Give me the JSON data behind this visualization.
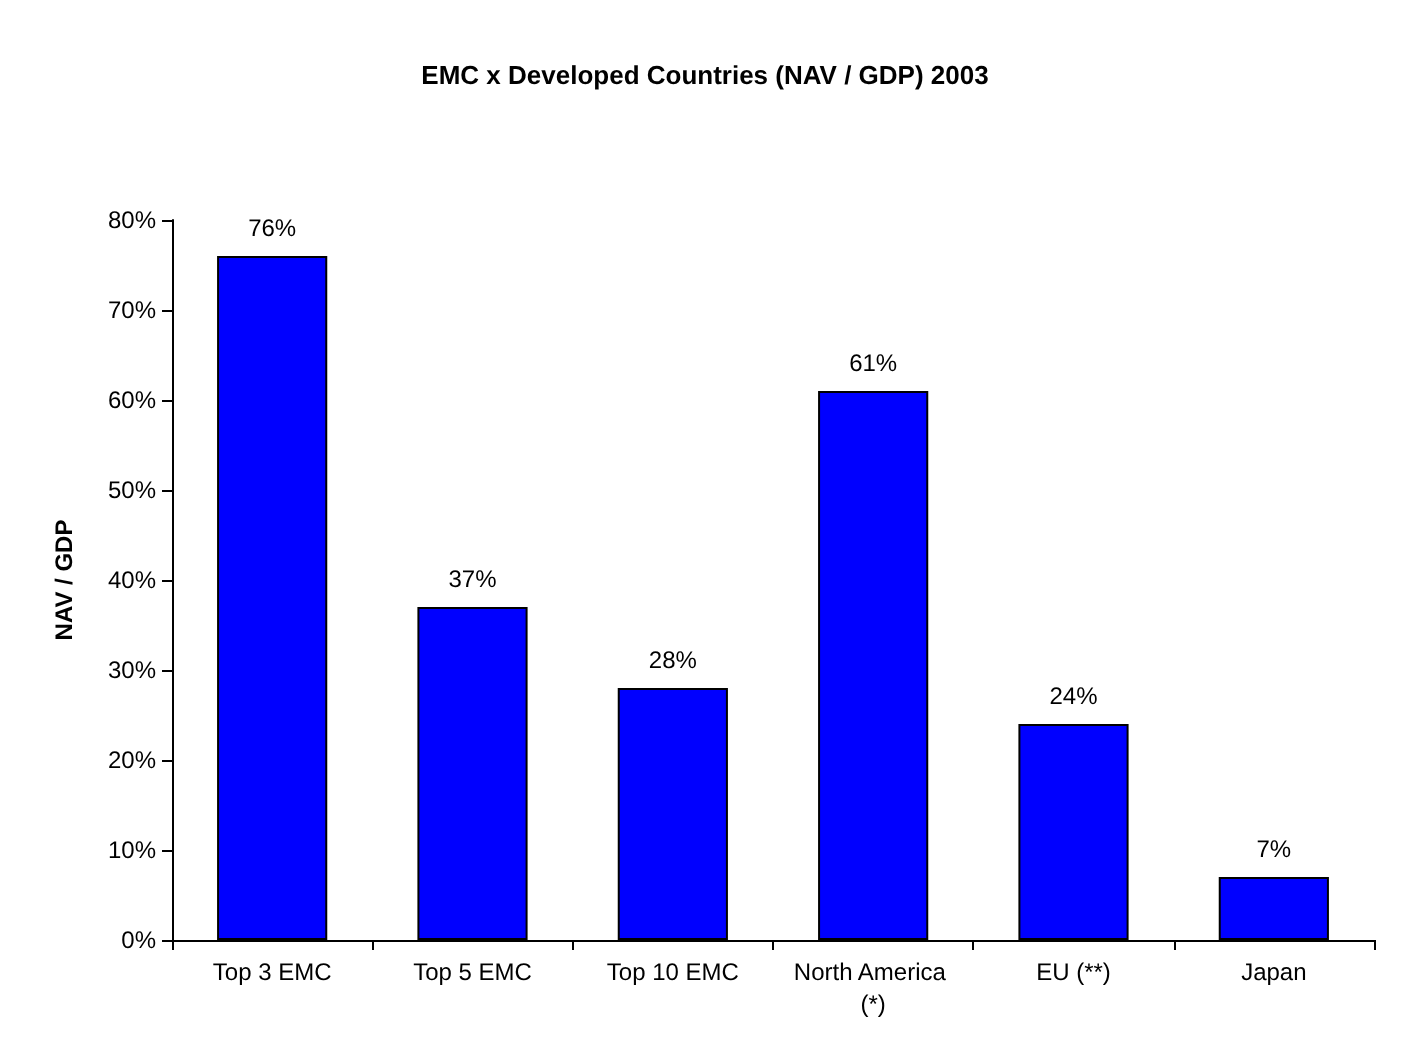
{
  "chart_data": {
    "type": "bar",
    "title": "EMC x Developed Countries (NAV / GDP) 2003",
    "ylabel": "NAV / GDP",
    "categories": [
      "Top 3 EMC",
      "Top 5 EMC",
      "Top 10 EMC",
      "North America (*)",
      "EU (**)",
      "Japan"
    ],
    "values": [
      76,
      37,
      28,
      61,
      24,
      7
    ],
    "color": "#0000ff",
    "value_labels": [
      "76%",
      "37%",
      "28%",
      "61%",
      "24%",
      "7%"
    ],
    "ylim": [
      0,
      80
    ],
    "yticks": [
      {
        "value": 0,
        "label": "0%"
      },
      {
        "value": 10,
        "label": "10%"
      },
      {
        "value": 20,
        "label": "20%"
      },
      {
        "value": 30,
        "label": "30%"
      },
      {
        "value": 40,
        "label": "40%"
      },
      {
        "value": 50,
        "label": "50%"
      },
      {
        "value": 60,
        "label": "60%"
      },
      {
        "value": 70,
        "label": "70%"
      },
      {
        "value": 80,
        "label": "80%"
      }
    ],
    "grid": false
  }
}
